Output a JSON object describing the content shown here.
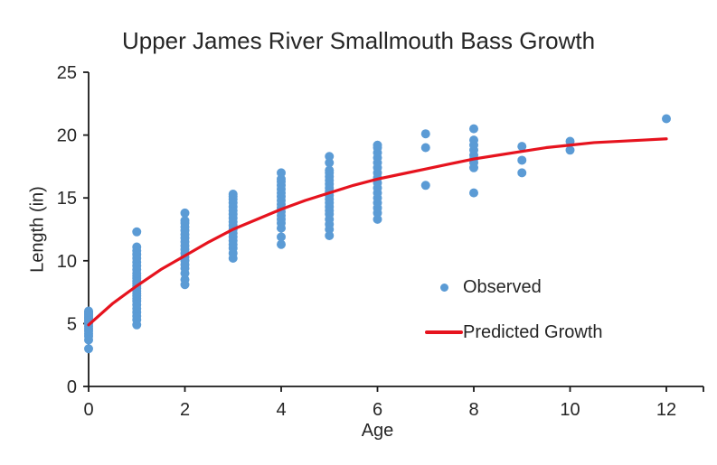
{
  "chart_data": {
    "type": "scatter",
    "title": "Upper James River Smallmouth Bass Growth",
    "xlabel": "Age",
    "ylabel": "Length (in)",
    "xlim": [
      0,
      12
    ],
    "ylim": [
      0,
      25
    ],
    "x_ticks": [
      0,
      2,
      4,
      6,
      8,
      10,
      12
    ],
    "y_ticks": [
      0,
      5,
      10,
      15,
      20,
      25
    ],
    "grid": false,
    "colors": {
      "observed": "#5b9bd5",
      "predicted": "#e6131e",
      "axis": "#1a1a1a",
      "text": "#262626",
      "background": "#ffffff"
    },
    "legend": {
      "position": "middle-right",
      "items": [
        {
          "label": "Observed",
          "marker": "dot",
          "color": "#5b9bd5"
        },
        {
          "label": "Predicted Growth",
          "marker": "line",
          "color": "#e6131e"
        }
      ]
    },
    "series": [
      {
        "name": "Observed",
        "type": "scatter",
        "color": "#5b9bd5",
        "points_by_age": [
          {
            "age": 0,
            "lengths": [
              3.0,
              3.7,
              4.0,
              4.2,
              4.4,
              4.6,
              4.8,
              5.0,
              5.1,
              5.2,
              5.3,
              5.4,
              5.5,
              5.6,
              5.7,
              5.8,
              5.9,
              6.0
            ]
          },
          {
            "age": 1,
            "lengths": [
              4.9,
              5.3,
              5.6,
              5.9,
              6.2,
              6.5,
              6.8,
              7.0,
              7.2,
              7.4,
              7.6,
              7.8,
              8.0,
              8.2,
              8.4,
              8.6,
              8.8,
              9.0,
              9.3,
              9.6,
              9.9,
              10.2,
              10.5,
              10.8,
              11.1,
              12.3
            ]
          },
          {
            "age": 2,
            "lengths": [
              8.1,
              8.5,
              9.0,
              9.4,
              9.7,
              10.0,
              10.3,
              10.6,
              10.9,
              11.2,
              11.5,
              11.8,
              12.1,
              12.4,
              12.7,
              13.0,
              13.2,
              13.8
            ]
          },
          {
            "age": 3,
            "lengths": [
              10.2,
              10.6,
              11.0,
              11.3,
              11.6,
              11.9,
              12.2,
              12.5,
              12.8,
              13.1,
              13.4,
              13.7,
              14.0,
              14.3,
              14.6,
              14.9,
              15.1,
              15.3
            ]
          },
          {
            "age": 4,
            "lengths": [
              11.3,
              11.9,
              12.6,
              13.0,
              13.3,
              13.6,
              13.9,
              14.2,
              14.5,
              14.8,
              15.1,
              15.4,
              15.7,
              16.0,
              16.3,
              16.5,
              17.0
            ]
          },
          {
            "age": 5,
            "lengths": [
              12.0,
              12.5,
              12.9,
              13.3,
              13.7,
              14.0,
              14.3,
              14.6,
              14.9,
              15.2,
              15.5,
              15.8,
              16.1,
              16.4,
              16.7,
              17.0,
              17.2,
              17.8,
              18.3
            ]
          },
          {
            "age": 6,
            "lengths": [
              13.3,
              13.8,
              14.2,
              14.6,
              15.0,
              15.4,
              15.8,
              16.2,
              16.6,
              17.0,
              17.4,
              17.8,
              18.2,
              18.6,
              19.0,
              19.2
            ]
          },
          {
            "age": 7,
            "lengths": [
              16.0,
              19.0,
              20.1
            ]
          },
          {
            "age": 8,
            "lengths": [
              15.4,
              17.4,
              17.8,
              18.1,
              18.4,
              18.8,
              19.2,
              19.6,
              20.5
            ]
          },
          {
            "age": 9,
            "lengths": [
              17.0,
              18.0,
              19.1
            ]
          },
          {
            "age": 10,
            "lengths": [
              18.8,
              19.5
            ]
          },
          {
            "age": 12,
            "lengths": [
              21.3
            ]
          }
        ]
      },
      {
        "name": "Predicted Growth",
        "type": "line",
        "color": "#e6131e",
        "points": [
          [
            0,
            4.9
          ],
          [
            0.5,
            6.6
          ],
          [
            1,
            8.0
          ],
          [
            1.5,
            9.3
          ],
          [
            2,
            10.4
          ],
          [
            2.5,
            11.5
          ],
          [
            3,
            12.5
          ],
          [
            3.5,
            13.3
          ],
          [
            4,
            14.1
          ],
          [
            4.5,
            14.8
          ],
          [
            5,
            15.4
          ],
          [
            5.5,
            16.0
          ],
          [
            6,
            16.5
          ],
          [
            6.5,
            16.9
          ],
          [
            7,
            17.3
          ],
          [
            7.5,
            17.7
          ],
          [
            8,
            18.1
          ],
          [
            8.5,
            18.4
          ],
          [
            9,
            18.7
          ],
          [
            9.5,
            19.0
          ],
          [
            10,
            19.2
          ],
          [
            10.5,
            19.4
          ],
          [
            11,
            19.5
          ],
          [
            11.5,
            19.6
          ],
          [
            12,
            19.7
          ]
        ]
      }
    ]
  }
}
